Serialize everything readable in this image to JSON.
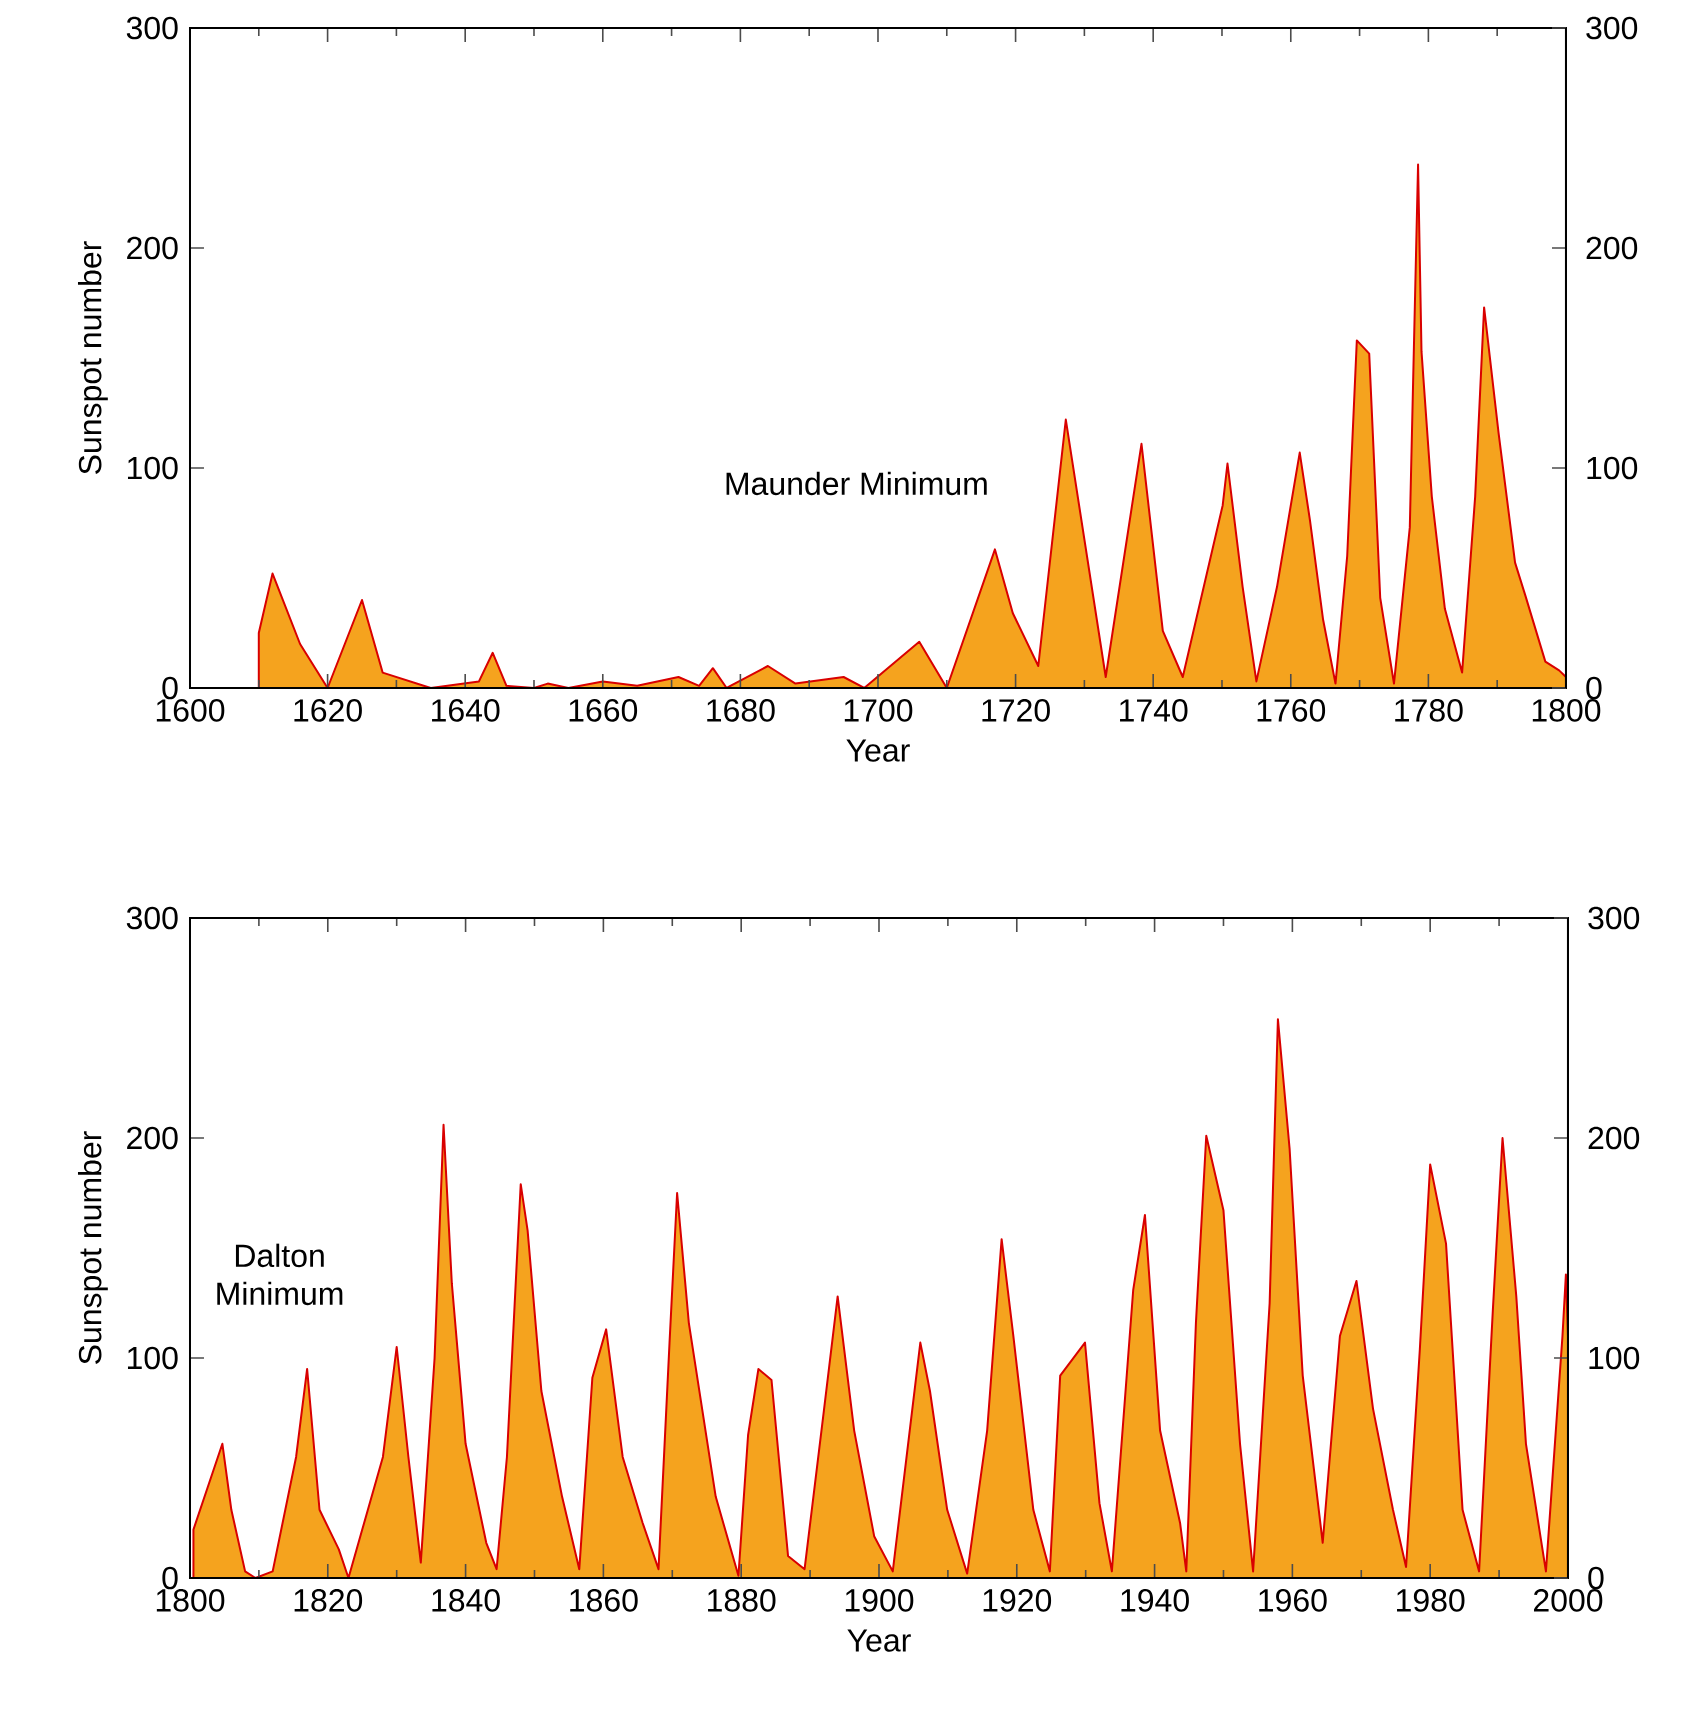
{
  "chart_data": [
    {
      "type": "area",
      "xlabel": "Year",
      "ylabel": "Sunspot number",
      "annotations": [
        "Maunder Minimum"
      ],
      "xlim": [
        1600,
        1800
      ],
      "xticks": [
        1600,
        1620,
        1640,
        1660,
        1680,
        1700,
        1720,
        1740,
        1760,
        1780,
        1800
      ],
      "ylim": [
        0,
        300
      ],
      "yticks": [
        0,
        100,
        200,
        300
      ],
      "y2lim": [
        0,
        300
      ],
      "y2ticks": [
        0,
        100,
        200,
        300
      ],
      "grid": false,
      "series": [
        {
          "color": "#f5a31e",
          "x": [
            1610,
            1612,
            1616,
            1620,
            1625,
            1628,
            1635,
            1642,
            1644,
            1646,
            1650,
            1652,
            1655,
            1660,
            1665,
            1671,
            1674,
            1676,
            1678,
            1684,
            1688,
            1695,
            1698,
            1706,
            1710,
            1717,
            1719.6,
            1723.3,
            1727.3,
            1733.1,
            1738.3,
            1741.4,
            1744.3,
            1750.1,
            1750.8,
            1753,
            1755,
            1758,
            1761.3,
            1762.8,
            1764.7,
            1766.5,
            1768.2,
            1769.6,
            1771.4,
            1773,
            1775,
            1777.3,
            1778.5,
            1779,
            1780.5,
            1782.4,
            1784.9,
            1786.8,
            1788.1,
            1790.2,
            1792.6,
            1794.1,
            1797,
            1799,
            1800
          ],
          "values": [
            25,
            52,
            20,
            0,
            40,
            7,
            0,
            3,
            16,
            1,
            0,
            2,
            0,
            3,
            1,
            5,
            1,
            9,
            0,
            10,
            2,
            5,
            0,
            21,
            0,
            63,
            34,
            10,
            122,
            5,
            111,
            26,
            5,
            83,
            102,
            46,
            3,
            46,
            107,
            76,
            31,
            2,
            60,
            158,
            152,
            41,
            2,
            73,
            238,
            153,
            87,
            36,
            7,
            87,
            173,
            116,
            57,
            42,
            12,
            8,
            5
          ]
        }
      ]
    },
    {
      "type": "area",
      "xlabel": "Year",
      "ylabel": "Sunspot number",
      "annotations": [
        "Dalton Minimum"
      ],
      "xlim": [
        1800,
        2000
      ],
      "xticks": [
        1800,
        1820,
        1840,
        1860,
        1880,
        1900,
        1920,
        1940,
        1960,
        1980,
        2000
      ],
      "ylim": [
        0,
        300
      ],
      "yticks": [
        0,
        100,
        200,
        300
      ],
      "y2lim": [
        0,
        300
      ],
      "y2ticks": [
        0,
        100,
        200,
        300
      ],
      "grid": false,
      "series": [
        {
          "color": "#f5a31e",
          "x": [
            1800.5,
            1804.7,
            1806,
            1808,
            1809.5,
            1812,
            1815.4,
            1817,
            1818.8,
            1821.6,
            1823,
            1825,
            1828,
            1830,
            1831.7,
            1833.5,
            1835.5,
            1836.8,
            1838,
            1840,
            1843,
            1844.5,
            1846,
            1848,
            1849,
            1851,
            1854,
            1856.5,
            1858.4,
            1860.4,
            1862.8,
            1865.7,
            1868,
            1869.6,
            1870.7,
            1872.4,
            1876.3,
            1879.6,
            1881,
            1882.5,
            1884.4,
            1886.8,
            1889.2,
            1892,
            1894,
            1896.4,
            1899.3,
            1902,
            1906,
            1907.4,
            1909.9,
            1912.8,
            1915.7,
            1917.8,
            1919.5,
            1922.4,
            1924.8,
            1926.3,
            1929.9,
            1932,
            1933.8,
            1936.9,
            1938.6,
            1940.8,
            1943.7,
            1944.6,
            1946,
            1947.5,
            1950,
            1952.4,
            1954.3,
            1956.7,
            1957.9,
            1959.6,
            1961.5,
            1964.4,
            1966.9,
            1969.3,
            1971.7,
            1974.6,
            1976.5,
            1978.5,
            1980,
            1982.3,
            1984.7,
            1987.1,
            1989.1,
            1990.5,
            1992.5,
            1993.9,
            1996.8,
            1999.2,
            1999.7,
            2000
          ],
          "values": [
            22,
            61,
            31,
            3,
            0,
            3,
            55,
            95,
            31,
            13,
            0,
            22,
            55,
            105,
            55,
            7,
            100,
            206,
            134,
            61,
            16,
            4,
            55,
            179,
            158,
            85,
            37,
            4,
            91,
            113,
            55,
            25,
            4,
            107,
            175,
            116,
            37,
            1,
            65,
            95,
            90,
            10,
            4,
            76,
            128,
            67,
            19,
            3,
            107,
            85,
            31,
            2,
            67,
            154,
            110,
            31,
            3,
            92,
            107,
            34,
            3,
            131,
            165,
            67,
            25,
            3,
            116,
            201,
            167,
            61,
            3,
            125,
            254,
            195,
            92,
            16,
            110,
            135,
            77,
            31,
            5,
            104,
            188,
            152,
            31,
            3,
            122,
            200,
            128,
            61,
            3,
            110,
            138,
            110
          ]
        }
      ]
    }
  ]
}
